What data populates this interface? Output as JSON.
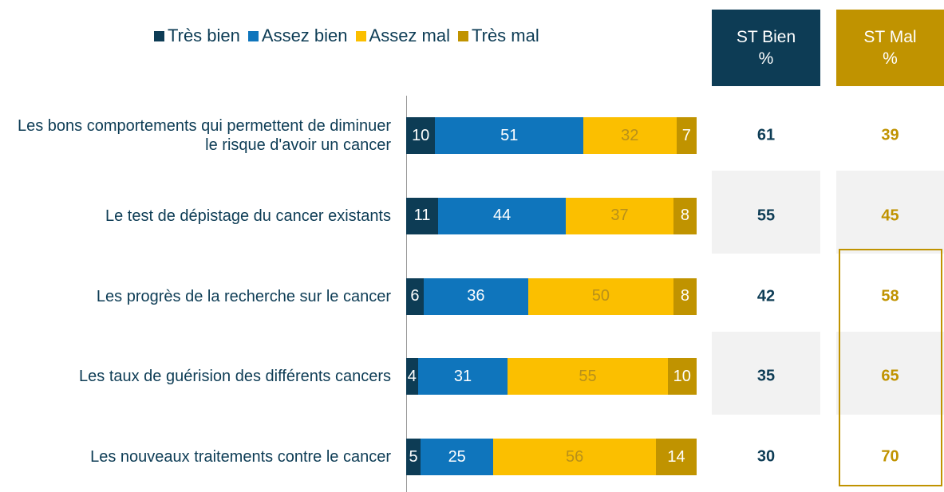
{
  "chart_data": {
    "type": "bar",
    "orientation": "horizontal",
    "stacked": true,
    "categories": [
      "Les bons comportements qui permettent de diminuer le risque d'avoir un cancer",
      "Le test de dépistage du cancer existants",
      "Les progrès de la recherche sur le cancer",
      "Les taux de guérision des différents cancers",
      "Les nouveaux traitements contre le cancer"
    ],
    "xlim": [
      0,
      100
    ],
    "series": [
      {
        "name": "Très bien",
        "color": "#0d3c55",
        "label_color": "#ffffff",
        "values": [
          10,
          11,
          6,
          4,
          5
        ]
      },
      {
        "name": "Assez bien",
        "color": "#0f75bc",
        "label_color": "#ffffff",
        "values": [
          51,
          44,
          36,
          31,
          25
        ]
      },
      {
        "name": "Assez mal",
        "color": "#fbbf00",
        "label_color": "#b8901a",
        "values": [
          32,
          37,
          50,
          55,
          56
        ]
      },
      {
        "name": "Très mal",
        "color": "#c09300",
        "label_color": "#ffffff",
        "values": [
          7,
          8,
          8,
          10,
          14
        ]
      }
    ],
    "columns": [
      {
        "header": [
          "ST Bien",
          "%"
        ],
        "color": "#0d3c55",
        "values": [
          61,
          55,
          42,
          35,
          30
        ]
      },
      {
        "header": [
          "ST Mal",
          "%"
        ],
        "color": "#c09300",
        "values": [
          39,
          45,
          58,
          65,
          70
        ]
      }
    ]
  }
}
